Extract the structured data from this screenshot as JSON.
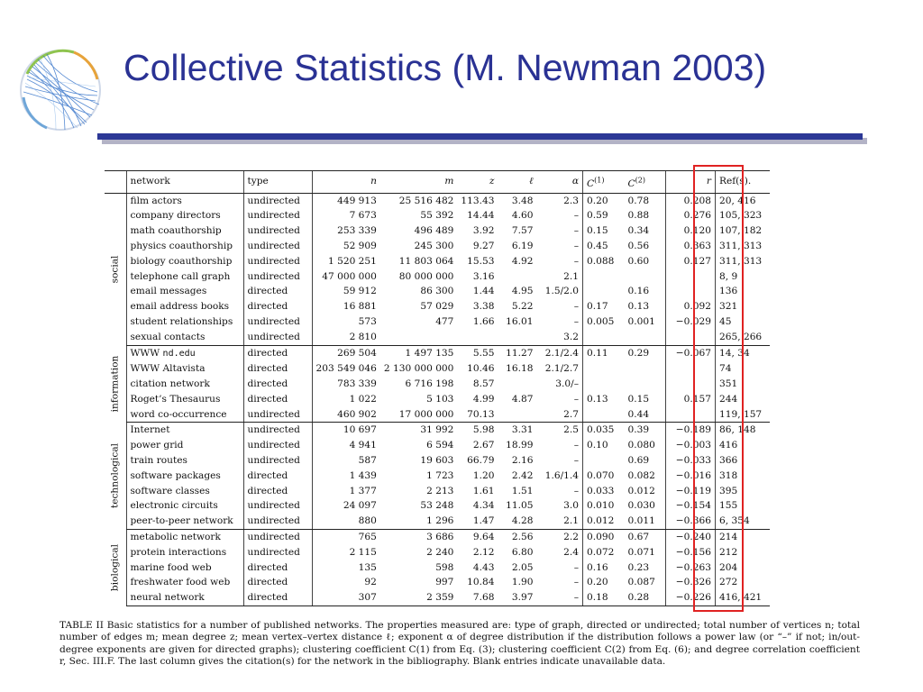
{
  "slide": {
    "title": "Collective Statistics (M. Newman 2003)"
  },
  "table": {
    "headers": {
      "network": "network",
      "type": "type",
      "n": "n",
      "m": "m",
      "z": "z",
      "l": "ℓ",
      "alpha": "α",
      "c1": "C(1)",
      "c2": "C(2)",
      "r": "r",
      "refs": "Ref(s)."
    },
    "groups": [
      {
        "label": "social",
        "rows": [
          {
            "network": "film actors",
            "type": "undirected",
            "n": "449 913",
            "m": "25 516 482",
            "z": "113.43",
            "l": "3.48",
            "alpha": "2.3",
            "c1": "0.20",
            "c2": "0.78",
            "r": "0.208",
            "refs": "20, 416"
          },
          {
            "network": "company directors",
            "type": "undirected",
            "n": "7 673",
            "m": "55 392",
            "z": "14.44",
            "l": "4.60",
            "alpha": "–",
            "c1": "0.59",
            "c2": "0.88",
            "r": "0.276",
            "refs": "105, 323"
          },
          {
            "network": "math coauthorship",
            "type": "undirected",
            "n": "253 339",
            "m": "496 489",
            "z": "3.92",
            "l": "7.57",
            "alpha": "–",
            "c1": "0.15",
            "c2": "0.34",
            "r": "0.120",
            "refs": "107, 182"
          },
          {
            "network": "physics coauthorship",
            "type": "undirected",
            "n": "52 909",
            "m": "245 300",
            "z": "9.27",
            "l": "6.19",
            "alpha": "–",
            "c1": "0.45",
            "c2": "0.56",
            "r": "0.363",
            "refs": "311, 313"
          },
          {
            "network": "biology coauthorship",
            "type": "undirected",
            "n": "1 520 251",
            "m": "11 803 064",
            "z": "15.53",
            "l": "4.92",
            "alpha": "–",
            "c1": "0.088",
            "c2": "0.60",
            "r": "0.127",
            "refs": "311, 313"
          },
          {
            "network": "telephone call graph",
            "type": "undirected",
            "n": "47 000 000",
            "m": "80 000 000",
            "z": "3.16",
            "l": "",
            "alpha": "2.1",
            "c1": "",
            "c2": "",
            "r": "",
            "refs": "8, 9"
          },
          {
            "network": "email messages",
            "type": "directed",
            "n": "59 912",
            "m": "86 300",
            "z": "1.44",
            "l": "4.95",
            "alpha": "1.5/2.0",
            "c1": "",
            "c2": "0.16",
            "r": "",
            "refs": "136"
          },
          {
            "network": "email address books",
            "type": "directed",
            "n": "16 881",
            "m": "57 029",
            "z": "3.38",
            "l": "5.22",
            "alpha": "–",
            "c1": "0.17",
            "c2": "0.13",
            "r": "0.092",
            "refs": "321"
          },
          {
            "network": "student relationships",
            "type": "undirected",
            "n": "573",
            "m": "477",
            "z": "1.66",
            "l": "16.01",
            "alpha": "–",
            "c1": "0.005",
            "c2": "0.001",
            "r": "−0.029",
            "refs": "45"
          },
          {
            "network": "sexual contacts",
            "type": "undirected",
            "n": "2 810",
            "m": "",
            "z": "",
            "l": "",
            "alpha": "3.2",
            "c1": "",
            "c2": "",
            "r": "",
            "refs": "265, 266"
          }
        ]
      },
      {
        "label": "information",
        "rows": [
          {
            "network": "WWW ",
            "network_code": "nd.edu",
            "type": "directed",
            "n": "269 504",
            "m": "1 497 135",
            "z": "5.55",
            "l": "11.27",
            "alpha": "2.1/2.4",
            "c1": "0.11",
            "c2": "0.29",
            "r": "−0.067",
            "refs": "14, 34"
          },
          {
            "network": "WWW Altavista",
            "type": "directed",
            "n": "203 549 046",
            "m": "2 130 000 000",
            "z": "10.46",
            "l": "16.18",
            "alpha": "2.1/2.7",
            "c1": "",
            "c2": "",
            "r": "",
            "refs": "74"
          },
          {
            "network": "citation network",
            "type": "directed",
            "n": "783 339",
            "m": "6 716 198",
            "z": "8.57",
            "l": "",
            "alpha": "3.0/–",
            "c1": "",
            "c2": "",
            "r": "",
            "refs": "351"
          },
          {
            "network": "Roget’s Thesaurus",
            "type": "directed",
            "n": "1 022",
            "m": "5 103",
            "z": "4.99",
            "l": "4.87",
            "alpha": "–",
            "c1": "0.13",
            "c2": "0.15",
            "r": "0.157",
            "refs": "244"
          },
          {
            "network": "word co-occurrence",
            "type": "undirected",
            "n": "460 902",
            "m": "17 000 000",
            "z": "70.13",
            "l": "",
            "alpha": "2.7",
            "c1": "",
            "c2": "0.44",
            "r": "",
            "refs": "119, 157"
          }
        ]
      },
      {
        "label": "technological",
        "rows": [
          {
            "network": "Internet",
            "type": "undirected",
            "n": "10 697",
            "m": "31 992",
            "z": "5.98",
            "l": "3.31",
            "alpha": "2.5",
            "c1": "0.035",
            "c2": "0.39",
            "r": "−0.189",
            "refs": "86, 148"
          },
          {
            "network": "power grid",
            "type": "undirected",
            "n": "4 941",
            "m": "6 594",
            "z": "2.67",
            "l": "18.99",
            "alpha": "–",
            "c1": "0.10",
            "c2": "0.080",
            "r": "−0.003",
            "refs": "416"
          },
          {
            "network": "train routes",
            "type": "undirected",
            "n": "587",
            "m": "19 603",
            "z": "66.79",
            "l": "2.16",
            "alpha": "–",
            "c1": "",
            "c2": "0.69",
            "r": "−0.033",
            "refs": "366"
          },
          {
            "network": "software packages",
            "type": "directed",
            "n": "1 439",
            "m": "1 723",
            "z": "1.20",
            "l": "2.42",
            "alpha": "1.6/1.4",
            "c1": "0.070",
            "c2": "0.082",
            "r": "−0.016",
            "refs": "318"
          },
          {
            "network": "software classes",
            "type": "directed",
            "n": "1 377",
            "m": "2 213",
            "z": "1.61",
            "l": "1.51",
            "alpha": "–",
            "c1": "0.033",
            "c2": "0.012",
            "r": "−0.119",
            "refs": "395"
          },
          {
            "network": "electronic circuits",
            "type": "undirected",
            "n": "24 097",
            "m": "53 248",
            "z": "4.34",
            "l": "11.05",
            "alpha": "3.0",
            "c1": "0.010",
            "c2": "0.030",
            "r": "−0.154",
            "refs": "155"
          },
          {
            "network": "peer-to-peer network",
            "type": "undirected",
            "n": "880",
            "m": "1 296",
            "z": "1.47",
            "l": "4.28",
            "alpha": "2.1",
            "c1": "0.012",
            "c2": "0.011",
            "r": "−0.366",
            "refs": "6, 354"
          }
        ]
      },
      {
        "label": "biological",
        "rows": [
          {
            "network": "metabolic network",
            "type": "undirected",
            "n": "765",
            "m": "3 686",
            "z": "9.64",
            "l": "2.56",
            "alpha": "2.2",
            "c1": "0.090",
            "c2": "0.67",
            "r": "−0.240",
            "refs": "214"
          },
          {
            "network": "protein interactions",
            "type": "undirected",
            "n": "2 115",
            "m": "2 240",
            "z": "2.12",
            "l": "6.80",
            "alpha": "2.4",
            "c1": "0.072",
            "c2": "0.071",
            "r": "−0.156",
            "refs": "212"
          },
          {
            "network": "marine food web",
            "type": "directed",
            "n": "135",
            "m": "598",
            "z": "4.43",
            "l": "2.05",
            "alpha": "–",
            "c1": "0.16",
            "c2": "0.23",
            "r": "−0.263",
            "refs": "204"
          },
          {
            "network": "freshwater food web",
            "type": "directed",
            "n": "92",
            "m": "997",
            "z": "10.84",
            "l": "1.90",
            "alpha": "–",
            "c1": "0.20",
            "c2": "0.087",
            "r": "−0.326",
            "refs": "272"
          },
          {
            "network": "neural network",
            "type": "directed",
            "n": "307",
            "m": "2 359",
            "z": "7.68",
            "l": "3.97",
            "alpha": "–",
            "c1": "0.18",
            "c2": "0.28",
            "r": "−0.226",
            "refs": "416, 421"
          }
        ]
      }
    ]
  },
  "caption": "TABLE II Basic statistics for a number of published networks. The properties measured are: type of graph, directed or undirected; total number of vertices n; total number of edges m; mean degree z; mean vertex–vertex distance ℓ; exponent α of degree distribution if the distribution follows a power law (or “–” if not; in/out-degree exponents are given for directed graphs); clustering coefficient C(1) from Eq. (3); clustering coefficient C(2) from Eq. (6); and degree correlation coefficient r, Sec. III.F. The last column gives the citation(s) for the network in the bibliography. Blank entries indicate unavailable data.",
  "colors": {
    "title": "#2a3294",
    "rule": "#2c3896",
    "highlight": "#e02222"
  },
  "icons": {
    "logo": "network-graph-logo"
  }
}
